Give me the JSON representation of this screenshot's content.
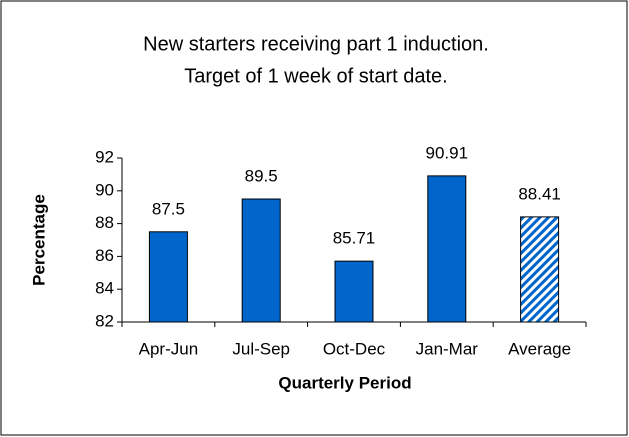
{
  "chart_data": {
    "type": "bar",
    "title": [
      "New starters receiving part 1 induction.",
      "Target of 1 week of start date."
    ],
    "x_label": "Quarterly Period",
    "y_label": "Percentage",
    "categories": [
      "Apr-Jun",
      "Jul-Sep",
      "Oct-Dec",
      "Jan-Mar",
      "Average"
    ],
    "values": [
      87.5,
      89.5,
      85.71,
      90.91,
      88.41
    ],
    "color": "#0066cc",
    "hatched": [
      false,
      false,
      false,
      false,
      true
    ],
    "ylim": [
      82,
      92
    ],
    "yticks": [
      82,
      84,
      86,
      88,
      90,
      92
    ],
    "grid": false
  }
}
